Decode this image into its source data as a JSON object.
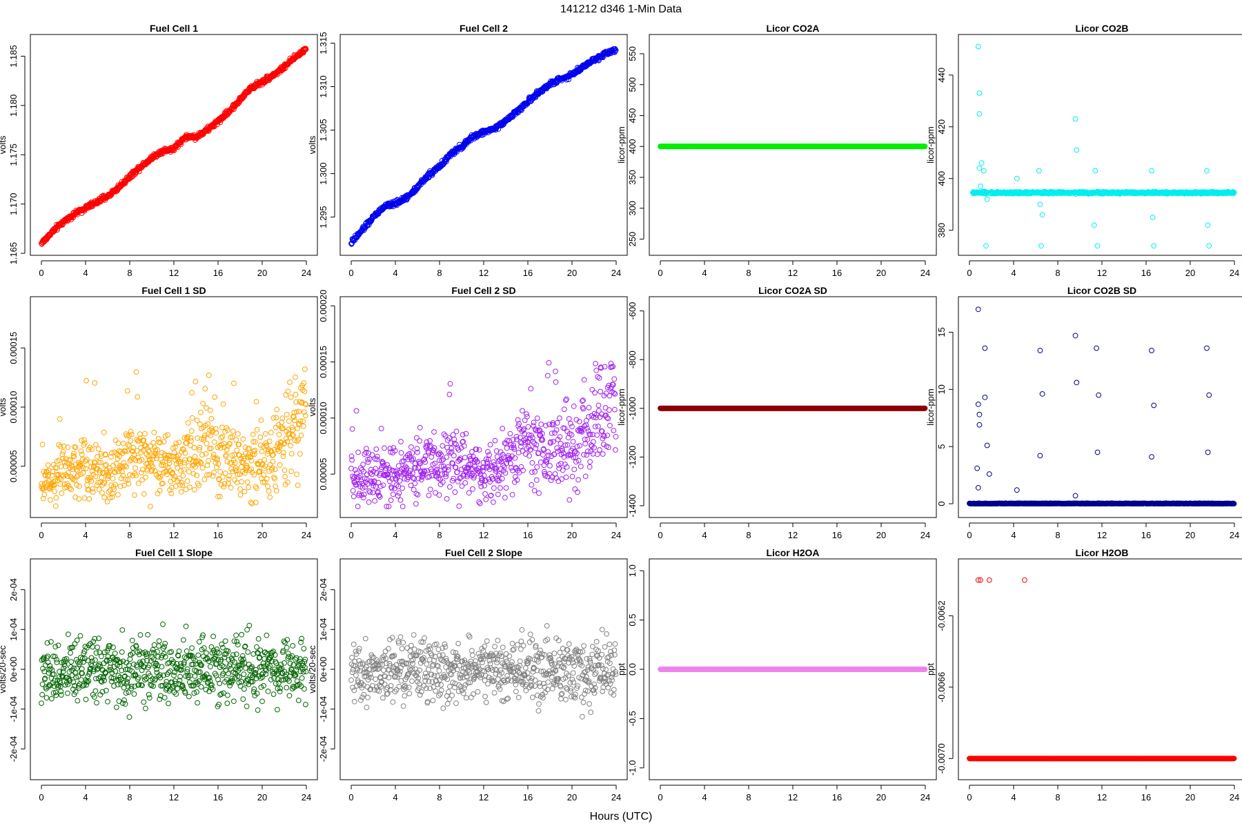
{
  "title": "141212   d346   1-Min Data",
  "xlabel": "Hours (UTC)",
  "chart_data": [
    {
      "type": "scatter",
      "title": "Fuel Cell 1",
      "ylabel": "volts",
      "color": "#ff0000",
      "xlim": [
        0,
        24
      ],
      "ylim": [
        1.1655,
        1.1865
      ],
      "yticks": [
        "1.165",
        "1.170",
        "1.175",
        "1.180",
        "1.185"
      ],
      "ytick_values": [
        1.165,
        1.17,
        1.175,
        1.18,
        1.185
      ],
      "xticks": [
        0,
        4,
        8,
        12,
        16,
        20,
        24
      ],
      "x": [
        0,
        1,
        2,
        3,
        4,
        5,
        6,
        7,
        8,
        9,
        10,
        11,
        12,
        13,
        14,
        15,
        16,
        17,
        18,
        19,
        20,
        21,
        22,
        23,
        24
      ],
      "y": [
        1.166,
        1.1672,
        1.1682,
        1.169,
        1.1696,
        1.1702,
        1.1708,
        1.1717,
        1.1728,
        1.1738,
        1.1747,
        1.1754,
        1.1756,
        1.1768,
        1.1768,
        1.1775,
        1.1784,
        1.1794,
        1.1806,
        1.1818,
        1.1824,
        1.1831,
        1.1839,
        1.1849,
        1.1858
      ]
    },
    {
      "type": "scatter",
      "title": "Fuel Cell 2",
      "ylabel": "volts",
      "color": "#0000ee",
      "xlim": [
        0,
        24
      ],
      "ylim": [
        1.2914,
        1.3152
      ],
      "yticks": [
        "1.295",
        "1.300",
        "1.305",
        "1.310",
        "1.315"
      ],
      "ytick_values": [
        1.295,
        1.3,
        1.305,
        1.31,
        1.315
      ],
      "xticks": [
        0,
        4,
        8,
        12,
        16,
        20,
        24
      ],
      "x": [
        0,
        1,
        2,
        3,
        4,
        5,
        6,
        7,
        8,
        9,
        10,
        11,
        12,
        13,
        14,
        15,
        16,
        17,
        18,
        19,
        20,
        21,
        22,
        23,
        24
      ],
      "y": [
        1.292,
        1.2935,
        1.295,
        1.2962,
        1.2966,
        1.2972,
        1.2985,
        1.2998,
        1.3008,
        1.3022,
        1.3031,
        1.3042,
        1.3048,
        1.3052,
        1.3061,
        1.3071,
        1.3083,
        1.3093,
        1.3103,
        1.3109,
        1.3114,
        1.3123,
        1.3131,
        1.3138,
        1.3143
      ]
    },
    {
      "type": "scatter",
      "title": "Licor CO2A",
      "ylabel": "licor-ppm",
      "color": "#00ee00",
      "xlim": [
        0,
        24
      ],
      "ylim": [
        235,
        570
      ],
      "yticks": [
        "250",
        "300",
        "350",
        "400",
        "450",
        "500",
        "550"
      ],
      "ytick_values": [
        250,
        300,
        350,
        400,
        450,
        500,
        550
      ],
      "xticks": [
        0,
        4,
        8,
        12,
        16,
        20,
        24
      ],
      "x": [
        0,
        24
      ],
      "y": [
        400,
        400
      ]
    },
    {
      "type": "scatter",
      "title": "Licor CO2B",
      "ylabel": "licor-ppm",
      "color": "#00eeee",
      "xlim": [
        0,
        24
      ],
      "ylim": [
        373,
        453
      ],
      "yticks": [
        "380",
        "400",
        "420",
        "440"
      ],
      "ytick_values": [
        380,
        400,
        420,
        440
      ],
      "xticks": [
        0,
        4,
        8,
        12,
        16,
        20,
        24
      ],
      "x": [
        0.8,
        0.9,
        0.9,
        1.1,
        1.3,
        1.5,
        6.3,
        6.5,
        9.6,
        9.7,
        11.4,
        11.6,
        16.5,
        16.7,
        21.5,
        21.7
      ],
      "y": [
        451,
        433,
        425,
        406,
        403,
        374,
        403,
        374,
        423,
        411,
        403,
        374,
        403,
        374,
        403,
        374
      ]
    },
    {
      "type": "scatter",
      "title": "Fuel Cell 1 SD",
      "ylabel": "volts",
      "color": "#ffa500",
      "xlim": [
        0,
        24
      ],
      "ylim": [
        1.25e-05,
        0.0001875
      ],
      "yticks": [
        "0.00005",
        "0.00010",
        "0.00015"
      ],
      "ytick_values": [
        5e-05,
        0.0001,
        0.00015
      ],
      "xticks": [
        0,
        4,
        8,
        12,
        16,
        20,
        24
      ],
      "x": [
        0,
        2,
        4,
        6,
        8,
        10,
        12,
        14,
        15,
        16,
        18,
        20,
        22,
        24
      ],
      "y": [
        3e-05,
        5e-05,
        5e-05,
        4e-05,
        6e-05,
        5e-05,
        5e-05,
        6e-05,
        8e-05,
        6e-05,
        5e-05,
        5e-05,
        7e-05,
        0.0001
      ]
    },
    {
      "type": "scatter",
      "title": "Fuel Cell 2 SD",
      "ylabel": "volts",
      "color": "#a020f0",
      "xlim": [
        0,
        24
      ],
      "ylim": [
        1.75e-05,
        0.000202
      ],
      "yticks": [
        "0.00005",
        "0.00010",
        "0.00015",
        "0.00020"
      ],
      "ytick_values": [
        5e-05,
        0.0001,
        0.00015,
        0.0002
      ],
      "xticks": [
        0,
        4,
        8,
        12,
        16,
        20,
        24
      ],
      "x": [
        0,
        2,
        4,
        6,
        8,
        10,
        12,
        14,
        15,
        16,
        18,
        20,
        22,
        24
      ],
      "y": [
        5e-05,
        5e-05,
        5e-05,
        5.5e-05,
        6e-05,
        6e-05,
        5e-05,
        6e-05,
        7e-05,
        8e-05,
        7e-05,
        7e-05,
        9e-05,
        0.00012
      ]
    },
    {
      "type": "scatter",
      "title": "Licor CO2A SD",
      "ylabel": "licor-ppm",
      "color": "#8b0000",
      "xlim": [
        0,
        24
      ],
      "ylim": [
        -1420,
        -570
      ],
      "yticks": [
        "-1400",
        "-1200",
        "-1000",
        "-800",
        "-600"
      ],
      "ytick_values": [
        -1400,
        -1200,
        -1000,
        -800,
        -600
      ],
      "xticks": [
        0,
        4,
        8,
        12,
        16,
        20,
        24
      ],
      "x": [
        0,
        24
      ],
      "y": [
        -1000,
        -1000
      ]
    },
    {
      "type": "scatter",
      "title": "Licor CO2B SD",
      "ylabel": "licor-ppm",
      "color": "#00008b",
      "xlim": [
        0,
        24
      ],
      "ylim": [
        -0.6,
        17.5
      ],
      "yticks": [
        "0",
        "5",
        "10",
        "15"
      ],
      "ytick_values": [
        0,
        5,
        10,
        15
      ],
      "xticks": [
        0,
        4,
        8,
        12,
        16,
        20,
        24
      ],
      "x": [
        0.8,
        0.8,
        0.9,
        1.4,
        6.4,
        6.6,
        9.6,
        9.7,
        11.5,
        11.7,
        16.5,
        16.7,
        21.5,
        21.7
      ],
      "y": [
        17,
        8.7,
        7.8,
        13.6,
        13.4,
        9.6,
        14.7,
        10.6,
        13.6,
        9.5,
        13.4,
        8.6,
        13.6,
        9.5
      ]
    },
    {
      "type": "scatter",
      "title": "Fuel Cell 1 Slope",
      "ylabel": "volts/20-sec",
      "color": "#006400",
      "xlim": [
        0,
        24
      ],
      "ylim": [
        -0.00026,
        0.00026
      ],
      "yticks": [
        "-2e-04",
        "-1e-04",
        "0e+00",
        "1e-04",
        "2e-04"
      ],
      "ytick_values": [
        -0.0002,
        -0.0001,
        0,
        0.0001,
        0.0002
      ],
      "xticks": [
        0,
        4,
        8,
        12,
        16,
        20,
        24
      ],
      "x": [
        0,
        24
      ],
      "y": [
        0,
        0
      ]
    },
    {
      "type": "scatter",
      "title": "Fuel Cell 2 Slope",
      "ylabel": "volts/20-sec",
      "color": "#808080",
      "xlim": [
        0,
        24
      ],
      "ylim": [
        -0.00026,
        0.00026
      ],
      "yticks": [
        "-2e-04",
        "-1e-04",
        "0e+00",
        "1e-04",
        "2e-04"
      ],
      "ytick_values": [
        -0.0002,
        -0.0001,
        0,
        0.0001,
        0.0002
      ],
      "xticks": [
        0,
        4,
        8,
        12,
        16,
        20,
        24
      ],
      "x": [
        0,
        24
      ],
      "y": [
        0,
        0
      ]
    },
    {
      "type": "scatter",
      "title": "Licor H2OA",
      "ylabel": "ppt",
      "color": "#ee82ee",
      "xlim": [
        0,
        24
      ],
      "ylim": [
        -1.05,
        1.05
      ],
      "yticks": [
        "-1.0",
        "-0.5",
        "0.0",
        "0.5",
        "1.0"
      ],
      "ytick_values": [
        -1,
        -0.5,
        0,
        0.5,
        1
      ],
      "xticks": [
        0,
        4,
        8,
        12,
        16,
        20,
        24
      ],
      "x": [
        0,
        24
      ],
      "y": [
        0,
        0
      ]
    },
    {
      "type": "scatter",
      "title": "Licor H2OB",
      "ylabel": "ppt",
      "color": "#ff0000",
      "xlim": [
        0,
        24
      ],
      "ylim": [
        -0.00708,
        -0.00592
      ],
      "yticks": [
        "-0.0070",
        "-0.0066",
        "-0.0062"
      ],
      "ytick_values": [
        -0.007,
        -0.0066,
        -0.0062
      ],
      "xticks": [
        0,
        4,
        8,
        12,
        16,
        20,
        24
      ],
      "x": [
        0.8,
        1,
        1.8,
        5,
        0,
        24
      ],
      "y": [
        -0.006,
        -0.006,
        -0.006,
        -0.006,
        -0.007,
        -0.007
      ]
    }
  ]
}
